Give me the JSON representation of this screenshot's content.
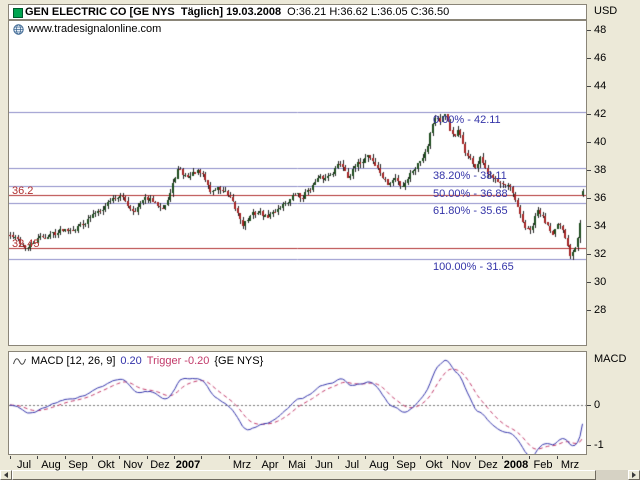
{
  "header": {
    "title": "GEN ELECTRIC CO [GE NYS  Täglich] 19.03.2008",
    "ohlc": "O:36.21 H:36.62 L:36.05 C:36.50"
  },
  "watermark": "www.tradesignalonline.com",
  "price_axis": {
    "unit": "USD"
  },
  "macd_panel": {
    "name": "MACD [12, 26, 9]",
    "value": "0.20",
    "trigger": "Trigger -0.20",
    "symbol": "{GE NYS}",
    "axis_label": "MACD"
  },
  "chart_data": {
    "type": "candlestick",
    "symbol": "GE NYS",
    "timeframe": "Täglich",
    "last_date": "19.03.2008",
    "last_ohlc": {
      "open": 36.21,
      "high": 36.62,
      "low": 36.05,
      "close": 36.5
    },
    "bars": 230,
    "y_axis": {
      "unit": "USD",
      "ticks": [
        48,
        46,
        44,
        42,
        40,
        38,
        36,
        34,
        32,
        30,
        28
      ],
      "min": 25.5,
      "max": 48.8
    },
    "x_labels": [
      "Jul",
      "Aug",
      "Sep",
      "Okt",
      "Nov",
      "Dez",
      "2007",
      "Mrz",
      "Apr",
      "Mai",
      "Jun",
      "Jul",
      "Aug",
      "Sep",
      "Okt",
      "Nov",
      "Dez",
      "2008",
      "Feb",
      "Mrz"
    ],
    "price_path_anchors": [
      [
        0.0,
        33.3
      ],
      [
        0.013,
        32.9
      ],
      [
        0.03,
        32.4
      ],
      [
        0.048,
        33.0
      ],
      [
        0.07,
        33.4
      ],
      [
        0.095,
        33.8
      ],
      [
        0.12,
        34.1
      ],
      [
        0.143,
        34.7
      ],
      [
        0.16,
        35.4
      ],
      [
        0.175,
        35.9
      ],
      [
        0.19,
        36.2
      ],
      [
        0.205,
        35.5
      ],
      [
        0.215,
        35.2
      ],
      [
        0.23,
        35.7
      ],
      [
        0.243,
        35.9
      ],
      [
        0.255,
        35.4
      ],
      [
        0.268,
        35.6
      ],
      [
        0.278,
        36.2
      ],
      [
        0.293,
        38.1
      ],
      [
        0.303,
        37.5
      ],
      [
        0.313,
        37.6
      ],
      [
        0.325,
        37.9
      ],
      [
        0.338,
        37.4
      ],
      [
        0.35,
        36.4
      ],
      [
        0.362,
        36.7
      ],
      [
        0.374,
        36.5
      ],
      [
        0.39,
        35.3
      ],
      [
        0.406,
        34.2
      ],
      [
        0.42,
        34.7
      ],
      [
        0.435,
        35.0
      ],
      [
        0.447,
        34.6
      ],
      [
        0.46,
        34.9
      ],
      [
        0.472,
        35.5
      ],
      [
        0.487,
        35.9
      ],
      [
        0.5,
        36.3
      ],
      [
        0.508,
        35.9
      ],
      [
        0.52,
        36.6
      ],
      [
        0.535,
        37.2
      ],
      [
        0.548,
        37.3
      ],
      [
        0.558,
        37.7
      ],
      [
        0.57,
        38.3
      ],
      [
        0.578,
        38.5
      ],
      [
        0.59,
        37.7
      ],
      [
        0.6,
        38.1
      ],
      [
        0.612,
        38.5
      ],
      [
        0.625,
        39.2
      ],
      [
        0.638,
        38.4
      ],
      [
        0.65,
        37.5
      ],
      [
        0.66,
        36.9
      ],
      [
        0.672,
        37.4
      ],
      [
        0.683,
        36.8
      ],
      [
        0.695,
        37.6
      ],
      [
        0.708,
        38.3
      ],
      [
        0.717,
        38.8
      ],
      [
        0.727,
        39.7
      ],
      [
        0.738,
        41.5
      ],
      [
        0.745,
        42.0
      ],
      [
        0.752,
        41.3
      ],
      [
        0.758,
        41.9
      ],
      [
        0.768,
        41.0
      ],
      [
        0.775,
        40.2
      ],
      [
        0.782,
        40.7
      ],
      [
        0.793,
        39.4
      ],
      [
        0.802,
        38.8
      ],
      [
        0.812,
        38.2
      ],
      [
        0.822,
        38.8
      ],
      [
        0.835,
        37.3
      ],
      [
        0.848,
        37.6
      ],
      [
        0.862,
        36.9
      ],
      [
        0.875,
        36.4
      ],
      [
        0.888,
        34.9
      ],
      [
        0.9,
        33.8
      ],
      [
        0.908,
        33.5
      ],
      [
        0.922,
        35.0
      ],
      [
        0.935,
        34.3
      ],
      [
        0.948,
        33.7
      ],
      [
        0.957,
        34.1
      ],
      [
        0.968,
        33.2
      ],
      [
        0.978,
        31.9
      ],
      [
        0.988,
        32.8
      ],
      [
        0.995,
        34.2
      ],
      [
        1.0,
        36.4
      ]
    ],
    "support_lines": [
      {
        "label": "36.2",
        "value": 36.2
      },
      {
        "label": "32.45",
        "value": 32.45
      }
    ],
    "fibonacci_levels": [
      {
        "label": "0.00% - 42.11",
        "value": 42.11
      },
      {
        "label": "38.20% - 38.11",
        "value": 38.11
      },
      {
        "label": "50.00% - 36.88",
        "value": 36.88
      },
      {
        "label": "61.80% - 35.65",
        "value": 35.65
      },
      {
        "label": "100.00% - 31.65",
        "value": 31.65
      }
    ],
    "indicator": {
      "type": "line",
      "name": "MACD",
      "params": [
        12,
        26,
        9
      ],
      "value": 0.2,
      "trigger": -0.2,
      "axis_label": "MACD",
      "axis_ticks": [
        0,
        -1
      ]
    },
    "colors": {
      "up": "#1b4a1b",
      "down": "#a32222",
      "wick": "#222222",
      "support": "#b03030",
      "fib": "#8d8dc8",
      "fib_text": "#3434a8",
      "macd_line": "#3333aa",
      "trigger_line": "#c23a6a",
      "ohlc_text": "#007a00",
      "background": "#ece9d8"
    }
  }
}
